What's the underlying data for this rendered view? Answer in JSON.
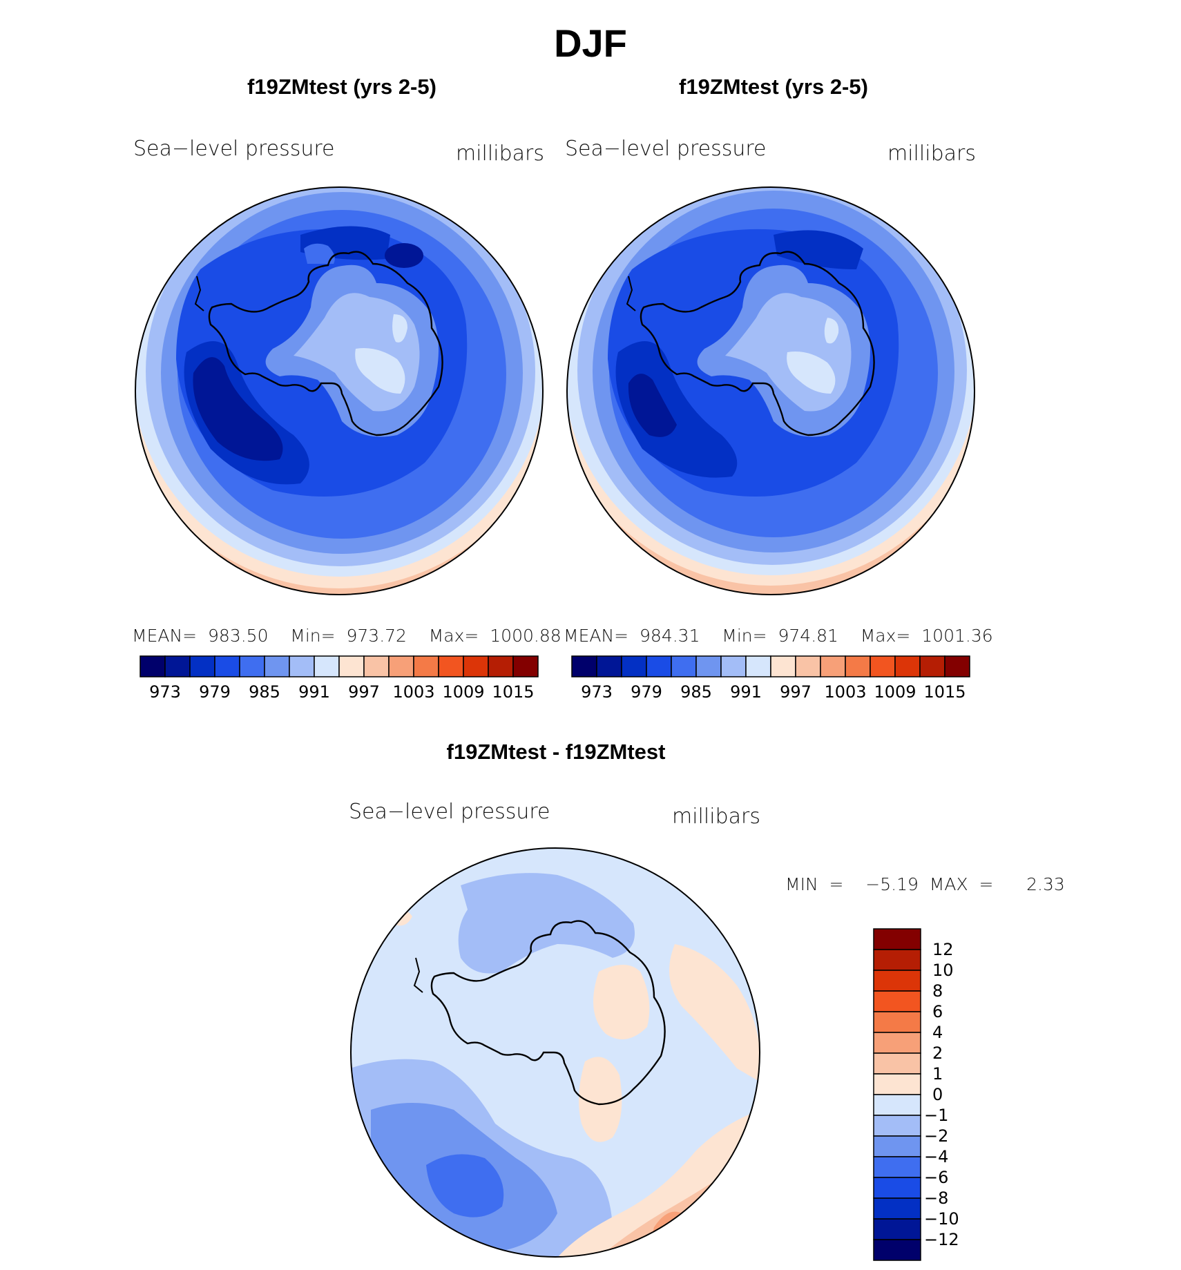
{
  "figure": {
    "title": "DJF",
    "panels": [
      {
        "title": "f19ZMtest (yrs 2-5)",
        "variable_label": "Sea−level pressure",
        "units_label": "millibars",
        "stats": "MEAN=  983.50    Min=  973.72    Max=  1000.88"
      },
      {
        "title": "f19ZMtest (yrs 2-5)",
        "variable_label": "Sea−level pressure",
        "units_label": "millibars",
        "stats": "MEAN=  984.31    Min=  974.81    Max=  1001.36"
      }
    ],
    "diff_panel": {
      "title": "f19ZMtest - f19ZMtest",
      "variable_label": "Sea−level pressure",
      "units_label": "millibars",
      "stats": "MIN  =    −5.19  MAX  =      2.33"
    }
  },
  "chart_data": [
    {
      "type": "heatmap",
      "projection": "south-polar stereographic",
      "title": "f19ZMtest (yrs 2-5)",
      "variable": "Sea-level pressure",
      "units": "millibars",
      "mean": 983.5,
      "min": 973.72,
      "max": 1000.88,
      "colorbar": {
        "orientation": "horizontal",
        "tick_labels": [
          "973",
          "979",
          "985",
          "991",
          "997",
          "1003",
          "1009",
          "1015"
        ],
        "colors": [
          "#00006b",
          "#001696",
          "#0330c4",
          "#1a4ce6",
          "#3f6ef0",
          "#6f95f0",
          "#a3bdf7",
          "#d6e6fc",
          "#fde4d2",
          "#f9c3a6",
          "#f7a078",
          "#f47a47",
          "#f25520",
          "#dc3508",
          "#b51e04",
          "#830000"
        ]
      }
    },
    {
      "type": "heatmap",
      "projection": "south-polar stereographic",
      "title": "f19ZMtest (yrs 2-5)",
      "variable": "Sea-level pressure",
      "units": "millibars",
      "mean": 984.31,
      "min": 974.81,
      "max": 1001.36,
      "colorbar": {
        "orientation": "horizontal",
        "tick_labels": [
          "973",
          "979",
          "985",
          "991",
          "997",
          "1003",
          "1009",
          "1015"
        ],
        "colors": [
          "#00006b",
          "#001696",
          "#0330c4",
          "#1a4ce6",
          "#3f6ef0",
          "#6f95f0",
          "#a3bdf7",
          "#d6e6fc",
          "#fde4d2",
          "#f9c3a6",
          "#f7a078",
          "#f47a47",
          "#f25520",
          "#dc3508",
          "#b51e04",
          "#830000"
        ]
      }
    },
    {
      "type": "heatmap",
      "projection": "south-polar stereographic",
      "title": "f19ZMtest - f19ZMtest",
      "variable": "Sea-level pressure",
      "units": "millibars",
      "min": -5.19,
      "max": 2.33,
      "colorbar": {
        "orientation": "vertical",
        "tick_labels": [
          "12",
          "10",
          "8",
          "6",
          "4",
          "2",
          "1",
          "0",
          "−1",
          "−2",
          "−4",
          "−6",
          "−8",
          "−10",
          "−12"
        ],
        "colors": [
          "#830000",
          "#b51e04",
          "#dc3508",
          "#f25520",
          "#f47a47",
          "#f7a078",
          "#f9c3a6",
          "#fde4d2",
          "#d6e6fc",
          "#a3bdf7",
          "#6f95f0",
          "#3f6ef0",
          "#1a4ce6",
          "#0330c4",
          "#001696",
          "#00006b"
        ]
      }
    }
  ]
}
